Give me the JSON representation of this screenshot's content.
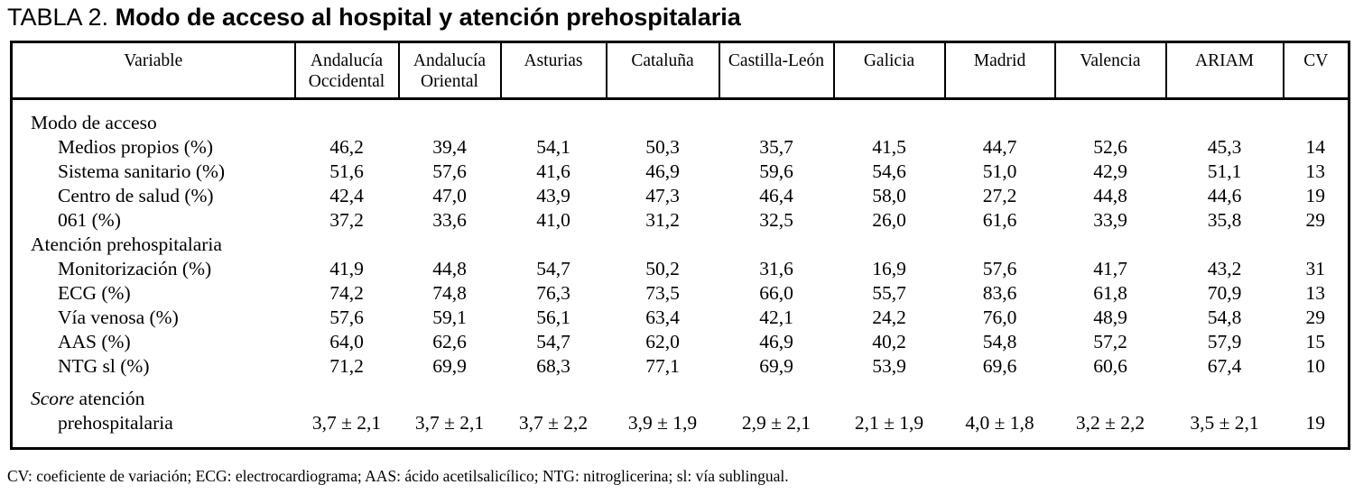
{
  "title": {
    "prefix": "TABLA 2.",
    "text": "Modo de acceso al hospital y atención prehospitalaria"
  },
  "table": {
    "columns": [
      "Variable",
      "Andalucía\nOccidental",
      "Andalucía\nOriental",
      "Asturias",
      "Cataluña",
      "Castilla-León",
      "Galicia",
      "Madrid",
      "Valencia",
      "ARIAM",
      "CV"
    ],
    "rows": [
      {
        "type": "section",
        "label": "Modo de acceso"
      },
      {
        "type": "data",
        "label": "Medios propios (%)",
        "values": [
          "46,2",
          "39,4",
          "54,1",
          "50,3",
          "35,7",
          "41,5",
          "44,7",
          "52,6",
          "45,3",
          "14"
        ]
      },
      {
        "type": "data",
        "label": "Sistema sanitario (%)",
        "values": [
          "51,6",
          "57,6",
          "41,6",
          "46,9",
          "59,6",
          "54,6",
          "51,0",
          "42,9",
          "51,1",
          "13"
        ]
      },
      {
        "type": "data",
        "label": "Centro de salud (%)",
        "values": [
          "42,4",
          "47,0",
          "43,9",
          "47,3",
          "46,4",
          "58,0",
          "27,2",
          "44,8",
          "44,6",
          "19"
        ]
      },
      {
        "type": "data",
        "label": "061 (%)",
        "values": [
          "37,2",
          "33,6",
          "41,0",
          "31,2",
          "32,5",
          "26,0",
          "61,6",
          "33,9",
          "35,8",
          "29"
        ]
      },
      {
        "type": "section",
        "label": "Atención prehospitalaria"
      },
      {
        "type": "data",
        "label": "Monitorización (%)",
        "values": [
          "41,9",
          "44,8",
          "54,7",
          "50,2",
          "31,6",
          "16,9",
          "57,6",
          "41,7",
          "43,2",
          "31"
        ]
      },
      {
        "type": "data",
        "label": "ECG (%)",
        "values": [
          "74,2",
          "74,8",
          "76,3",
          "73,5",
          "66,0",
          "55,7",
          "83,6",
          "61,8",
          "70,9",
          "13"
        ]
      },
      {
        "type": "data",
        "label": "Vía venosa (%)",
        "values": [
          "57,6",
          "59,1",
          "56,1",
          "63,4",
          "42,1",
          "24,2",
          "76,0",
          "48,9",
          "54,8",
          "29"
        ]
      },
      {
        "type": "data",
        "label": "AAS (%)",
        "values": [
          "64,0",
          "62,6",
          "54,7",
          "62,0",
          "46,9",
          "40,2",
          "54,8",
          "57,2",
          "57,9",
          "15"
        ]
      },
      {
        "type": "data",
        "label": "NTG sl (%)",
        "values": [
          "71,2",
          "69,9",
          "68,3",
          "77,1",
          "69,9",
          "53,9",
          "69,6",
          "60,6",
          "67,4",
          "10"
        ]
      },
      {
        "type": "score",
        "label_italic": "Score",
        "label_after": " atención",
        "label_line2": "prehospitalaria",
        "values": [
          "3,7 ± 2,1",
          "3,7 ± 2,1",
          "3,7 ± 2,2",
          "3,9 ± 1,9",
          "2,9 ± 2,1",
          "2,1 ± 1,9",
          "4,0 ± 1,8",
          "3,2 ± 2,2",
          "3,5 ± 2,1",
          "19"
        ]
      }
    ]
  },
  "footnote": "CV: coeficiente de variación; ECG: electrocardiograma; AAS: ácido acetilsalicílico; NTG: nitroglicerina; sl: vía sublingual."
}
